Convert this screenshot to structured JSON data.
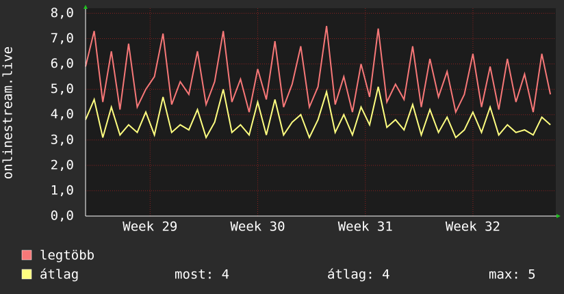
{
  "chart_data": {
    "type": "line",
    "y_label": "onlinestream.live",
    "x": [
      28.4,
      28.48,
      28.56,
      28.64,
      28.72,
      28.8,
      28.88,
      28.96,
      29.04,
      29.12,
      29.2,
      29.28,
      29.36,
      29.44,
      29.52,
      29.6,
      29.68,
      29.76,
      29.84,
      29.92,
      30.0,
      30.08,
      30.16,
      30.24,
      30.32,
      30.4,
      30.48,
      30.56,
      30.64,
      30.72,
      30.8,
      30.88,
      30.96,
      31.04,
      31.12,
      31.2,
      31.28,
      31.36,
      31.44,
      31.52,
      31.6,
      31.68,
      31.76,
      31.84,
      31.92,
      32.0,
      32.08,
      32.16,
      32.24,
      32.32,
      32.4,
      32.48,
      32.56,
      32.64,
      32.72
    ],
    "series": [
      {
        "name": "legtöbb",
        "color": "#f87878",
        "values": [
          5.9,
          7.3,
          4.5,
          6.5,
          4.2,
          6.8,
          4.3,
          5.0,
          5.5,
          7.2,
          4.4,
          5.3,
          4.8,
          6.5,
          4.4,
          5.3,
          7.3,
          4.5,
          5.4,
          4.1,
          5.8,
          4.6,
          6.9,
          4.3,
          5.2,
          6.7,
          4.3,
          5.1,
          7.5,
          4.4,
          5.5,
          4.1,
          6.0,
          4.7,
          7.4,
          4.5,
          5.2,
          4.6,
          6.7,
          4.3,
          6.2,
          4.7,
          5.7,
          4.1,
          4.8,
          6.4,
          4.3,
          5.9,
          4.2,
          6.2,
          4.5,
          5.6,
          4.1,
          6.4,
          4.8
        ]
      },
      {
        "name": "átlag",
        "color": "#ffff80",
        "values": [
          3.8,
          4.6,
          3.1,
          4.3,
          3.2,
          3.6,
          3.3,
          4.1,
          3.2,
          4.7,
          3.3,
          3.6,
          3.4,
          4.2,
          3.1,
          3.7,
          5.0,
          3.3,
          3.6,
          3.2,
          4.5,
          3.2,
          4.6,
          3.2,
          3.7,
          4.0,
          3.1,
          3.8,
          4.9,
          3.3,
          4.0,
          3.2,
          4.3,
          3.6,
          5.1,
          3.5,
          3.8,
          3.4,
          4.4,
          3.2,
          4.2,
          3.3,
          3.9,
          3.1,
          3.4,
          4.1,
          3.3,
          4.3,
          3.2,
          3.6,
          3.3,
          3.4,
          3.2,
          3.9,
          3.6
        ]
      }
    ],
    "stats": [
      "most: 4",
      "átlag: 4",
      "max: 5"
    ],
    "xlim": [
      28.4,
      32.77
    ],
    "xticks": [
      {
        "value": 29,
        "label": "Week 29"
      },
      {
        "value": 30,
        "label": "Week 30"
      },
      {
        "value": 31,
        "label": "Week 31"
      },
      {
        "value": 32,
        "label": "Week 32"
      }
    ],
    "ylim": [
      0,
      8.2
    ],
    "yticks": [
      {
        "value": 0,
        "label": "0,0"
      },
      {
        "value": 1,
        "label": "1,0"
      },
      {
        "value": 2,
        "label": "2,0"
      },
      {
        "value": 3,
        "label": "3,0"
      },
      {
        "value": 4,
        "label": "4,0"
      },
      {
        "value": 5,
        "label": "5,0"
      },
      {
        "value": 6,
        "label": "6,0"
      },
      {
        "value": 7,
        "label": "7,0"
      },
      {
        "value": 8,
        "label": "8,0"
      }
    ],
    "grid": true
  }
}
